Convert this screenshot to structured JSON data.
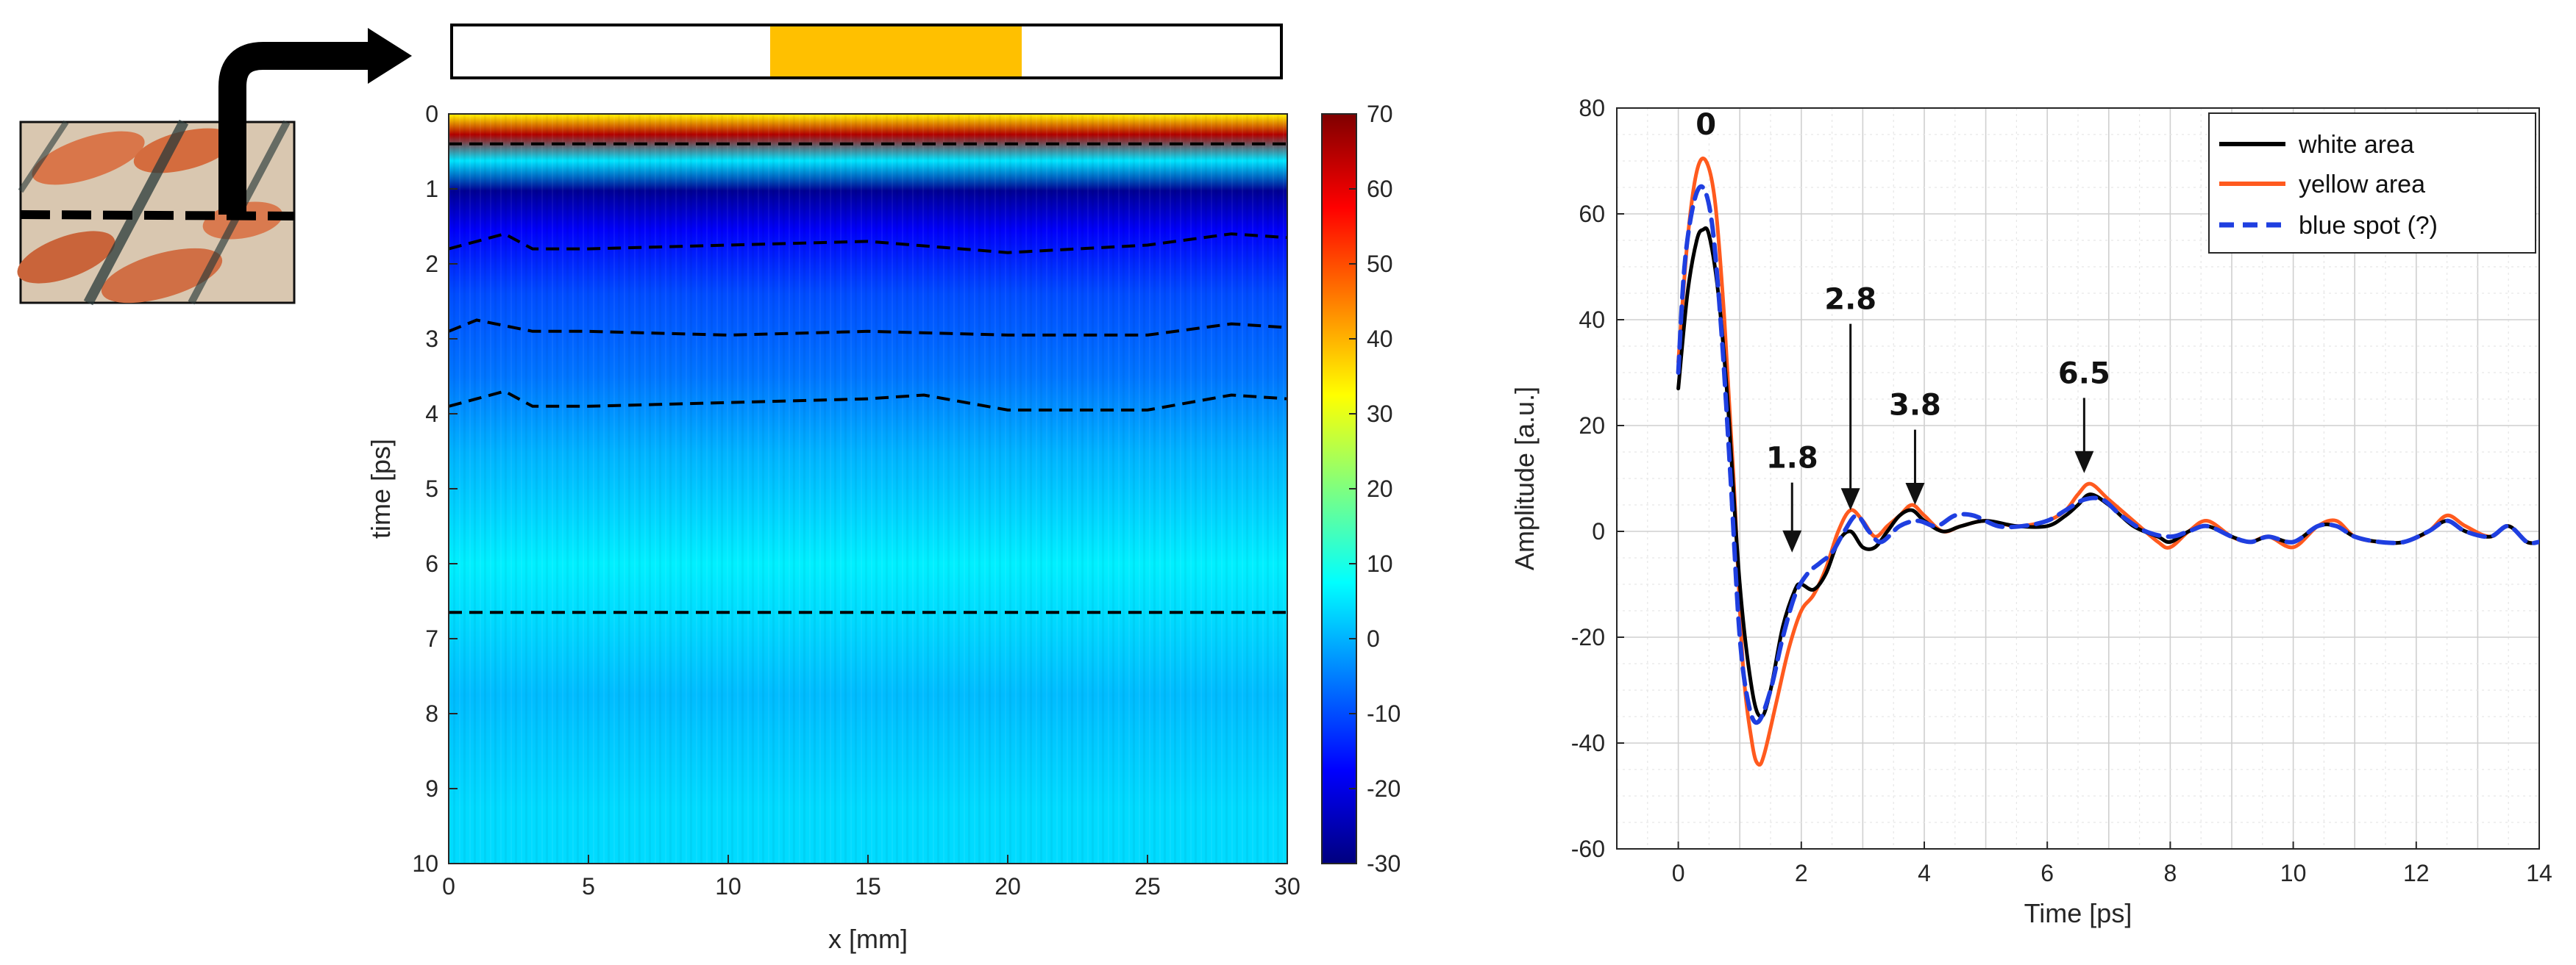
{
  "colors": {
    "yellow_bar": "#FFC000",
    "white_area": "#000000",
    "yellow_area": "#FF5A1E",
    "blue_spot": "#1F3FE0",
    "axis": "#262626",
    "grid": "#D9D9D9"
  },
  "icons": {
    "sample_photo": "painted-sample-thumbnail-icon",
    "arrow": "bent-arrow-icon"
  },
  "chart_data": [
    {
      "type": "heatmap",
      "title": "",
      "xlabel": "x [mm]",
      "ylabel": "time [ps]",
      "xlim": [
        0,
        30
      ],
      "ylim": [
        10,
        0
      ],
      "xticks": [
        "0",
        "5",
        "10",
        "15",
        "20",
        "25",
        "30"
      ],
      "yticks": [
        "0",
        "1",
        "2",
        "3",
        "4",
        "5",
        "6",
        "7",
        "8",
        "9",
        "10"
      ],
      "colorbar": {
        "range": [
          -30,
          70
        ],
        "ticks": [
          "70",
          "60",
          "50",
          "40",
          "30",
          "20",
          "10",
          "0",
          "-10",
          "-20",
          "-30"
        ]
      },
      "colorbar_gradient": [
        "#00007F",
        "#0000FF",
        "#007FFF",
        "#00FFFF",
        "#7FFF7F",
        "#FFFF00",
        "#FF7F00",
        "#FF0000",
        "#7F0000"
      ],
      "bands": [
        {
          "t0": 0.0,
          "t1": 0.05,
          "value": 35
        },
        {
          "t0": 0.05,
          "t1": 0.5,
          "value": 65
        },
        {
          "t0": 0.5,
          "t1": 0.75,
          "value": 5
        },
        {
          "t0": 0.75,
          "t1": 1.3,
          "value": -28
        },
        {
          "t0": 1.3,
          "t1": 1.8,
          "value": -18
        },
        {
          "t0": 1.8,
          "t1": 3.0,
          "value": -10
        },
        {
          "t0": 3.0,
          "t1": 4.0,
          "value": -6
        },
        {
          "t0": 4.0,
          "t1": 5.0,
          "value": 0
        },
        {
          "t0": 5.0,
          "t1": 7.0,
          "value": 6
        },
        {
          "t0": 7.0,
          "t1": 8.5,
          "value": 1
        },
        {
          "t0": 8.5,
          "t1": 10.0,
          "value": 4
        }
      ],
      "interfaces": [
        {
          "x": [
            0,
            30
          ],
          "t": [
            0.4,
            0.4
          ]
        },
        {
          "x": [
            0,
            1,
            2,
            3,
            5,
            10,
            15,
            20,
            25,
            28,
            30
          ],
          "t": [
            1.8,
            1.7,
            1.6,
            1.8,
            1.8,
            1.75,
            1.7,
            1.85,
            1.75,
            1.6,
            1.65
          ]
        },
        {
          "x": [
            0,
            1,
            3,
            5,
            10,
            15,
            20,
            25,
            28,
            30
          ],
          "t": [
            2.9,
            2.75,
            2.9,
            2.9,
            2.95,
            2.9,
            2.95,
            2.95,
            2.8,
            2.85
          ]
        },
        {
          "x": [
            0,
            1,
            2,
            3,
            5,
            10,
            15,
            17,
            20,
            25,
            28,
            30
          ],
          "t": [
            3.9,
            3.8,
            3.7,
            3.9,
            3.9,
            3.85,
            3.8,
            3.75,
            3.95,
            3.95,
            3.75,
            3.8
          ]
        },
        {
          "x": [
            0,
            30
          ],
          "t": [
            6.65,
            6.65
          ]
        }
      ],
      "indicator_bar": {
        "x_start": 11.5,
        "x_end": 20.5
      }
    },
    {
      "type": "line",
      "title": "",
      "xlabel": "Time [ps]",
      "ylabel": "Amplitude [a.u.]",
      "xlim": [
        -1,
        14
      ],
      "ylim": [
        -60,
        80
      ],
      "xticks": [
        "0",
        "2",
        "4",
        "6",
        "8",
        "10",
        "12",
        "14"
      ],
      "yticks": [
        "80",
        "60",
        "40",
        "20",
        "0",
        "-20",
        "-40",
        "-60"
      ],
      "legend_position": "top-right",
      "series": [
        {
          "name": "white area",
          "x": [
            0,
            0.15,
            0.3,
            0.4,
            0.5,
            0.65,
            0.8,
            1.0,
            1.2,
            1.35,
            1.5,
            1.7,
            1.9,
            2.0,
            2.2,
            2.4,
            2.6,
            2.8,
            3.0,
            3.2,
            3.4,
            3.6,
            3.8,
            4.0,
            4.3,
            4.6,
            5.0,
            5.5,
            6.0,
            6.3,
            6.5,
            6.7,
            7.0,
            7.4,
            7.8,
            8.0,
            8.3,
            8.6,
            9.0,
            9.3,
            9.6,
            10.0,
            10.4,
            10.7,
            11.0,
            11.4,
            11.8,
            12.2,
            12.5,
            12.8,
            13.2,
            13.5,
            13.8,
            14.0
          ],
          "values": [
            27,
            45,
            55,
            57,
            56,
            45,
            25,
            -10,
            -30,
            -35,
            -30,
            -18,
            -11,
            -10,
            -11,
            -8,
            -2,
            0,
            -3,
            -3,
            0,
            3,
            4,
            2,
            0,
            1,
            2,
            1,
            1,
            3,
            5,
            7,
            5,
            1,
            -1,
            -2,
            0,
            1,
            -1,
            -2,
            -1,
            -2,
            1,
            1,
            -1,
            -2,
            -2,
            0,
            2,
            0,
            -1,
            1,
            -2,
            -2
          ]
        },
        {
          "name": "yellow area",
          "x": [
            0,
            0.15,
            0.3,
            0.45,
            0.6,
            0.75,
            0.9,
            1.05,
            1.2,
            1.3,
            1.4,
            1.6,
            1.8,
            2.0,
            2.2,
            2.4,
            2.6,
            2.8,
            3.0,
            3.2,
            3.4,
            3.6,
            3.8,
            4.0,
            4.3,
            4.6,
            5.0,
            5.5,
            6.0,
            6.3,
            6.5,
            6.7,
            7.0,
            7.4,
            7.8,
            8.0,
            8.3,
            8.6,
            9.0,
            9.3,
            9.6,
            10.0,
            10.4,
            10.7,
            11.0,
            11.4,
            11.8,
            12.2,
            12.5,
            12.8,
            13.2,
            13.5,
            13.8,
            14.0
          ],
          "values": [
            32,
            55,
            68,
            70,
            62,
            40,
            10,
            -25,
            -40,
            -44,
            -42,
            -32,
            -22,
            -15,
            -12,
            -7,
            0,
            4,
            2,
            -1,
            1,
            3,
            5,
            3,
            0,
            1,
            2,
            1,
            2,
            4,
            7,
            9,
            6,
            2,
            -2,
            -3,
            0,
            2,
            -1,
            -2,
            -1,
            -3,
            1,
            2,
            -1,
            -2,
            -2,
            0,
            3,
            1,
            -1,
            1,
            -2,
            -2
          ]
        },
        {
          "name": "blue spot (?)",
          "x": [
            0,
            0.1,
            0.25,
            0.4,
            0.55,
            0.7,
            0.85,
            1.0,
            1.15,
            1.3,
            1.5,
            1.7,
            1.9,
            2.1,
            2.3,
            2.5,
            2.7,
            2.9,
            3.1,
            3.3,
            3.6,
            3.9,
            4.2,
            4.5,
            4.8,
            5.2,
            5.6,
            6.0,
            6.3,
            6.6,
            6.9,
            7.2,
            7.6,
            8.0,
            8.3,
            8.6,
            9.0,
            9.3,
            9.6,
            10.0,
            10.4,
            10.7,
            11.0,
            11.4,
            11.8,
            12.2,
            12.5,
            12.8,
            13.2,
            13.5,
            13.8,
            14.0
          ],
          "values": [
            30,
            50,
            62,
            65,
            58,
            38,
            10,
            -20,
            -33,
            -36,
            -30,
            -20,
            -12,
            -8,
            -6,
            -4,
            0,
            3,
            0,
            -2,
            1,
            2,
            1,
            3,
            3,
            1,
            1,
            2,
            4,
            6,
            6,
            3,
            0,
            -1,
            0,
            1,
            -1,
            -2,
            -1,
            -2,
            1,
            1,
            -1,
            -2,
            -2,
            0,
            2,
            0,
            -1,
            1,
            -2,
            -2
          ]
        }
      ],
      "annotations": [
        {
          "label": "0",
          "x": 0.45,
          "y": 75,
          "arrow": false
        },
        {
          "label": "1.8",
          "x": 1.85,
          "y": 12,
          "arrow": true,
          "tip_y": -4
        },
        {
          "label": "2.8",
          "x": 2.8,
          "y": 42,
          "arrow": true,
          "tip_y": 4
        },
        {
          "label": "3.8",
          "x": 3.85,
          "y": 22,
          "arrow": true,
          "tip_y": 5
        },
        {
          "label": "6.5",
          "x": 6.6,
          "y": 28,
          "arrow": true,
          "tip_y": 11
        }
      ]
    }
  ]
}
